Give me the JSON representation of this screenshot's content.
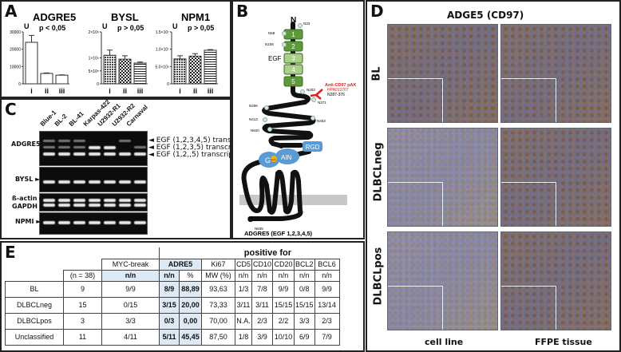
{
  "panels": {
    "a": "A",
    "b": "B",
    "c": "C",
    "d": "D",
    "e": "E"
  },
  "chart_data": [
    {
      "type": "bar",
      "title": "ADGRE5",
      "subtitle": "p < 0,05",
      "ylabel": "U",
      "categories": [
        "i",
        "ii",
        "iii"
      ],
      "values": [
        24000,
        6000,
        5000
      ],
      "errors": [
        4000,
        300,
        200
      ],
      "ylim": [
        0,
        30000
      ],
      "yticks": [
        "0",
        "10000",
        "20000",
        "30000"
      ],
      "ytick_values": [
        0,
        10000,
        20000,
        30000
      ],
      "fills": [
        "plain",
        "plain",
        "plain"
      ]
    },
    {
      "type": "bar",
      "title": "BYSL",
      "subtitle": "p > 0,05",
      "ylabel": "U",
      "categories": [
        "i",
        "ii",
        "iii"
      ],
      "values": [
        1100000,
        950000,
        800000
      ],
      "errors": [
        200000,
        130000,
        40000
      ],
      "ylim": [
        0,
        2000000
      ],
      "yticks": [
        "0",
        "5×10⁵",
        "1×10⁶",
        "2×10⁶"
      ],
      "ytick_values": [
        0,
        500000,
        1000000,
        2000000
      ],
      "fills": [
        "dense",
        "check",
        "stripes"
      ]
    },
    {
      "type": "bar",
      "title": "NPM1",
      "subtitle": "p > 0,05",
      "ylabel": "U",
      "categories": [
        "i",
        "ii",
        "iii"
      ],
      "values": [
        7200000,
        8000000,
        9700000
      ],
      "errors": [
        900000,
        700000,
        200000
      ],
      "ylim": [
        0,
        15000000
      ],
      "yticks": [
        "0",
        "5.0×10⁶",
        "1.0×10⁷",
        "1.5×10⁷"
      ],
      "ytick_values": [
        0,
        5000000,
        10000000,
        15000000
      ],
      "fills": [
        "dense",
        "check",
        "stripes"
      ]
    }
  ],
  "gel": {
    "lanes": [
      "Blue-1",
      "BL-2",
      "BL-41",
      "Karpas-422",
      "U2932-R1",
      "U2932-R2",
      "Carnaval"
    ],
    "rows": {
      "adgre5": "ADGRE5 ►",
      "bysl": "BYSL ►",
      "actin": "ß-actin ►",
      "gapdh": "GAPDH ►",
      "npm": "NPMI ►"
    },
    "transcripts": [
      "◄ EGF (1,2,3,4,5) transcript",
      "◄ EGF (1,2,3,5) transcript",
      "◄ EGF (1,2,,5) transcript"
    ]
  },
  "protein": {
    "n_term": "N",
    "c_term": "C",
    "egf": "EGF",
    "domains": [
      "1",
      "2",
      "3",
      "4",
      "5"
    ],
    "sites": [
      "N33",
      "N58",
      "N108",
      "N203",
      "N371",
      "N406",
      "N413",
      "N453",
      "N520",
      "N835"
    ],
    "antibody": [
      "Anti-CD97 pAK",
      "HPA013707"
    ],
    "epitope": "N287-376",
    "rgd": "RGD",
    "gain_left": "G",
    "gain_right": "AIN",
    "gps": "GPS",
    "caption": "ADGRE5 (EGF 1,2,3,4,5)",
    "colors": {
      "egf_dark": "#5e9a3c",
      "egf_light": "#a9cf8a",
      "gain": "#5b9bd5",
      "antibody": "#e0201b"
    }
  },
  "ihc": {
    "title": "ADGE5 (CD97)",
    "rows": [
      "BL",
      "DLBCLneg",
      "DLBCLpos"
    ],
    "cols": [
      "cell line",
      "FFPE tissue"
    ]
  },
  "table": {
    "positive_for": "positive for",
    "header1": [
      "MYC-break",
      "ADRE5",
      "Ki67",
      "CD5",
      "CD10",
      "CD20",
      "BCL2",
      "BCL6"
    ],
    "header2": [
      "(n = 38)",
      "n/n",
      "n/n",
      "%",
      "MW (%)",
      "n/n",
      "n/n",
      "n/n",
      "n/n",
      "n/n"
    ],
    "rows": [
      [
        "BL",
        "9",
        "9/9",
        "8/9",
        "88,89",
        "93,63",
        "1/3",
        "7/8",
        "9/9",
        "0/8",
        "9/9"
      ],
      [
        "DLBCLneg",
        "15",
        "0/15",
        "3/15",
        "20,00",
        "73,33",
        "3/11",
        "3/11",
        "15/15",
        "15/15",
        "13/14"
      ],
      [
        "DLBCLpos",
        "3",
        "3/3",
        "0/3",
        "0,00",
        "70,00",
        "N.A.",
        "2/3",
        "2/2",
        "3/3",
        "2/3"
      ],
      [
        "Unclassified",
        "11",
        "4/11",
        "5/11",
        "45,45",
        "87,50",
        "1/8",
        "3/9",
        "10/10",
        "6/9",
        "7/9"
      ]
    ]
  }
}
